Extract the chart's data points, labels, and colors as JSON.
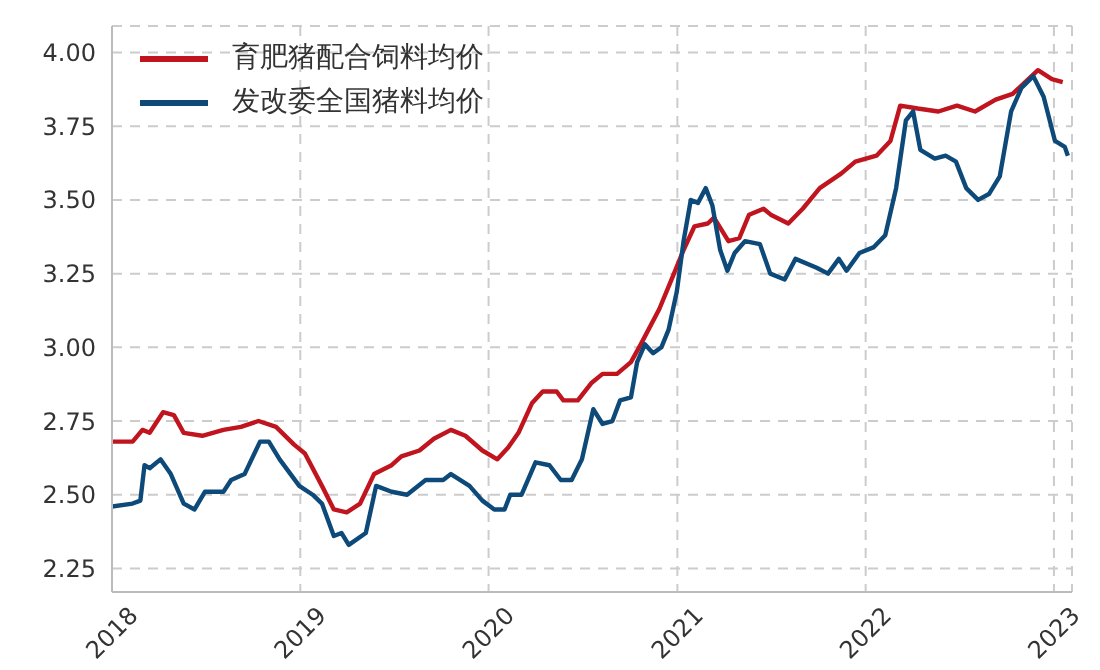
{
  "chart_data": {
    "type": "line",
    "x": [
      "2018-01-01",
      "2018-02-10",
      "2018-03-01",
      "2018-03-15",
      "2018-04-10",
      "2018-05-01",
      "2018-05-20",
      "2018-06-25",
      "2018-08-05",
      "2018-09-08",
      "2018-10-12",
      "2018-11-15",
      "2018-12-20",
      "2019-01-10",
      "2019-02-12",
      "2019-03-07",
      "2019-04-01",
      "2019-04-27",
      "2019-05-24",
      "2019-06-27",
      "2019-07-16",
      "2019-08-20",
      "2019-09-17",
      "2019-10-20",
      "2019-11-17",
      "2019-12-20",
      "2020-01-18",
      "2020-02-08",
      "2020-02-28",
      "2020-03-25",
      "2020-04-15",
      "2020-05-12",
      "2020-05-25",
      "2020-06-22",
      "2020-07-19",
      "2020-08-09",
      "2020-09-06",
      "2020-10-03",
      "2020-10-22",
      "2020-11-27",
      "2020-12-23",
      "2021-01-13",
      "2021-02-03",
      "2021-03-01",
      "2021-03-13",
      "2021-04-10",
      "2021-05-01",
      "2021-05-20",
      "2021-06-17",
      "2021-07-01",
      "2021-08-04",
      "2021-09-01",
      "2021-10-04",
      "2021-11-15",
      "2021-12-12",
      "2022-01-22",
      "2022-02-18",
      "2022-03-09",
      "2022-04-12",
      "2022-05-22",
      "2022-06-27",
      "2022-08-01",
      "2022-09-10",
      "2022-10-13",
      "2022-12-01",
      "2022-12-28",
      "2023-01-18"
    ],
    "series": [
      {
        "name": "育肥猪配合饲料均价",
        "color": "#c0141e",
        "values": [
          2.68,
          2.68,
          2.72,
          2.71,
          2.78,
          2.77,
          2.71,
          2.7,
          2.72,
          2.73,
          2.75,
          2.73,
          2.67,
          2.64,
          2.53,
          2.45,
          2.44,
          2.47,
          2.57,
          2.6,
          2.63,
          2.65,
          2.69,
          2.72,
          2.7,
          2.65,
          2.62,
          2.66,
          2.71,
          2.81,
          2.85,
          2.85,
          2.82,
          2.82,
          2.88,
          2.91,
          2.91,
          2.95,
          3.01,
          3.13,
          3.24,
          3.33,
          3.41,
          3.42,
          3.44,
          3.36,
          3.37,
          3.45,
          3.47,
          3.45,
          3.42,
          3.47,
          3.54,
          3.59,
          3.63,
          3.65,
          3.7,
          3.82,
          3.81,
          3.8,
          3.82,
          3.8,
          3.84,
          3.86,
          3.94,
          3.91,
          3.9
        ]
      },
      {
        "name": "发改委全国猪料均价",
        "color": "#0d4a7a",
        "x": [
          "2018-01-01",
          "2018-02-10",
          "2018-02-25",
          "2018-03-05",
          "2018-03-15",
          "2018-04-05",
          "2018-04-25",
          "2018-05-20",
          "2018-06-10",
          "2018-06-30",
          "2018-08-05",
          "2018-08-20",
          "2018-09-15",
          "2018-10-15",
          "2018-11-01",
          "2018-11-22",
          "2018-12-30",
          "2019-01-25",
          "2019-02-12",
          "2019-03-07",
          "2019-03-22",
          "2019-04-05",
          "2019-05-08",
          "2019-05-28",
          "2019-06-27",
          "2019-07-27",
          "2019-09-01",
          "2019-10-05",
          "2019-10-20",
          "2019-11-25",
          "2019-12-20",
          "2020-01-12",
          "2020-02-01",
          "2020-02-12",
          "2020-03-05",
          "2020-04-01",
          "2020-04-28",
          "2020-05-20",
          "2020-06-10",
          "2020-06-30",
          "2020-07-22",
          "2020-08-09",
          "2020-08-28",
          "2020-09-12",
          "2020-10-03",
          "2020-10-15",
          "2020-10-30",
          "2020-11-15",
          "2020-12-01",
          "2020-12-15",
          "2020-12-31",
          "2021-01-13",
          "2021-01-27",
          "2021-02-10",
          "2021-02-25",
          "2021-03-10",
          "2021-03-25",
          "2021-04-08",
          "2021-04-22",
          "2021-05-12",
          "2021-06-10",
          "2021-06-30",
          "2021-07-28",
          "2021-08-18",
          "2021-09-28",
          "2021-10-20",
          "2021-11-10",
          "2021-11-25",
          "2021-12-20",
          "2022-01-17",
          "2022-02-08",
          "2022-03-01",
          "2022-03-20",
          "2022-04-03",
          "2022-04-17",
          "2022-05-15",
          "2022-06-05",
          "2022-06-25",
          "2022-07-15",
          "2022-08-07",
          "2022-08-28",
          "2022-09-18",
          "2022-10-10",
          "2022-10-30",
          "2022-11-22",
          "2022-12-12",
          "2023-01-03",
          "2023-01-22",
          "2023-01-28"
        ],
        "values": [
          2.46,
          2.47,
          2.48,
          2.6,
          2.59,
          2.62,
          2.57,
          2.47,
          2.45,
          2.51,
          2.51,
          2.55,
          2.57,
          2.68,
          2.68,
          2.62,
          2.53,
          2.5,
          2.47,
          2.36,
          2.37,
          2.33,
          2.37,
          2.53,
          2.51,
          2.5,
          2.55,
          2.55,
          2.57,
          2.53,
          2.48,
          2.45,
          2.45,
          2.5,
          2.5,
          2.61,
          2.6,
          2.55,
          2.55,
          2.62,
          2.79,
          2.74,
          2.75,
          2.82,
          2.83,
          2.95,
          3.01,
          2.98,
          3.0,
          3.06,
          3.19,
          3.36,
          3.5,
          3.49,
          3.54,
          3.48,
          3.33,
          3.26,
          3.32,
          3.36,
          3.35,
          3.25,
          3.23,
          3.3,
          3.27,
          3.25,
          3.3,
          3.26,
          3.32,
          3.34,
          3.38,
          3.54,
          3.77,
          3.8,
          3.67,
          3.64,
          3.65,
          3.63,
          3.54,
          3.5,
          3.52,
          3.58,
          3.8,
          3.88,
          3.92,
          3.85,
          3.7,
          3.68,
          3.65
        ]
      }
    ],
    "xlim": [
      "2018-01-01",
      "2023-02-05"
    ],
    "xticks": [
      "2018",
      "2019",
      "2020",
      "2021",
      "2022",
      "2023"
    ],
    "ylim": [
      2.17,
      4.09
    ],
    "yticks": [
      {
        "value": 2.25,
        "label": "2.25"
      },
      {
        "value": 2.5,
        "label": "2.50"
      },
      {
        "value": 2.75,
        "label": "2.75"
      },
      {
        "value": 3,
        "label": "3.00"
      },
      {
        "value": 3.25,
        "label": "3.25"
      },
      {
        "value": 3.5,
        "label": "3.50"
      },
      {
        "value": 3.75,
        "label": "3.75"
      },
      {
        "value": 4,
        "label": "4.00"
      }
    ],
    "grid": true,
    "legend": "top left",
    "line_style": "solid",
    "marker": "none"
  }
}
